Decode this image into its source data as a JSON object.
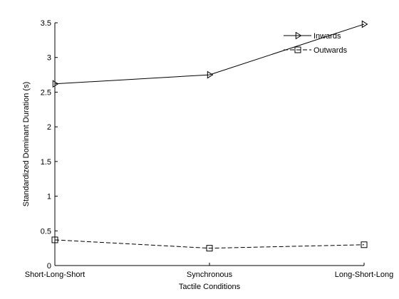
{
  "chart_data": {
    "type": "line",
    "xlabel": "Tactile Conditions",
    "ylabel": "Standardized Dominant Duration (s)",
    "categories": [
      "Short-Long-Short",
      "Synchronous",
      "Long-Short-Long"
    ],
    "ylim": [
      0,
      3.5
    ],
    "yticks": [
      "0",
      "0.5",
      "1",
      "1.5",
      "2",
      "2.5",
      "3",
      "3.5"
    ],
    "grid": false,
    "legend_position": "top-right",
    "series": [
      {
        "name": "Inwards",
        "values": [
          2.62,
          2.75,
          3.48
        ],
        "line_style": "solid",
        "marker": "triangle-right",
        "color": "#000000"
      },
      {
        "name": "Outwards",
        "values": [
          0.37,
          0.25,
          0.3
        ],
        "line_style": "dashed",
        "marker": "square",
        "color": "#000000"
      }
    ]
  }
}
